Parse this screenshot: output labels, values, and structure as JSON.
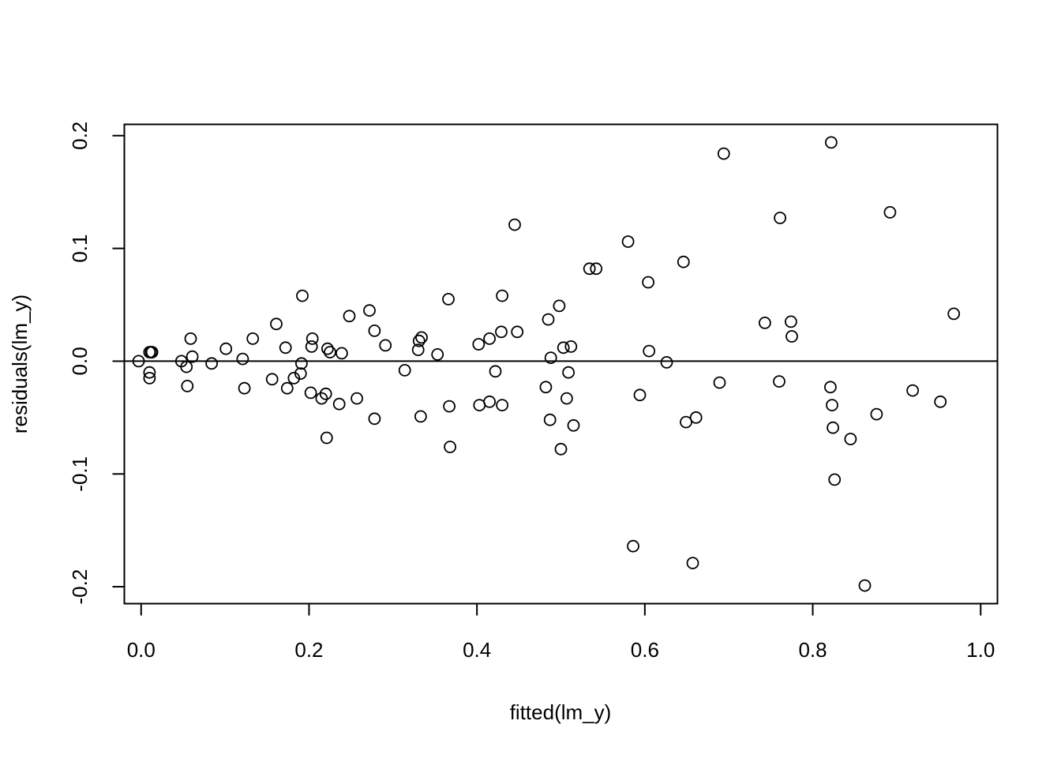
{
  "chart_data": {
    "type": "scatter",
    "title": "",
    "xlabel": "fitted(lm_y)",
    "ylabel": "residuals(lm_y)",
    "xlim": [
      -0.02,
      1.02
    ],
    "ylim": [
      -0.215,
      0.21
    ],
    "x_ticks": [
      0.0,
      0.2,
      0.4,
      0.6,
      0.8,
      1.0
    ],
    "x_tick_labels": [
      "0.0",
      "0.2",
      "0.4",
      "0.6",
      "0.8",
      "1.0"
    ],
    "y_ticks": [
      -0.2,
      -0.1,
      0.0,
      0.1,
      0.2
    ],
    "y_tick_labels": [
      "-0.2",
      "-0.1",
      "0.0",
      "0.1",
      "0.2"
    ],
    "reference_line_y": 0,
    "grid": false,
    "legend": "none",
    "point_style": "open-circle",
    "points": [
      [
        -0.003,
        0.0
      ],
      [
        0.01,
        0.008
      ],
      [
        0.012,
        0.008
      ],
      [
        0.013,
        0.008
      ],
      [
        0.01,
        -0.01
      ],
      [
        0.01,
        -0.015
      ],
      [
        0.048,
        0.0
      ],
      [
        0.054,
        -0.005
      ],
      [
        0.055,
        -0.022
      ],
      [
        0.059,
        0.02
      ],
      [
        0.061,
        0.004
      ],
      [
        0.084,
        -0.002
      ],
      [
        0.101,
        0.011
      ],
      [
        0.121,
        0.002
      ],
      [
        0.123,
        -0.024
      ],
      [
        0.133,
        0.02
      ],
      [
        0.156,
        -0.016
      ],
      [
        0.161,
        0.033
      ],
      [
        0.172,
        0.012
      ],
      [
        0.174,
        -0.024
      ],
      [
        0.182,
        -0.015
      ],
      [
        0.19,
        -0.011
      ],
      [
        0.191,
        -0.002
      ],
      [
        0.192,
        0.058
      ],
      [
        0.202,
        -0.028
      ],
      [
        0.203,
        0.013
      ],
      [
        0.204,
        0.02
      ],
      [
        0.215,
        -0.033
      ],
      [
        0.22,
        -0.029
      ],
      [
        0.222,
        0.011
      ],
      [
        0.221,
        -0.068
      ],
      [
        0.225,
        0.008
      ],
      [
        0.236,
        -0.038
      ],
      [
        0.239,
        0.007
      ],
      [
        0.248,
        0.04
      ],
      [
        0.257,
        -0.033
      ],
      [
        0.272,
        0.045
      ],
      [
        0.278,
        0.027
      ],
      [
        0.278,
        -0.051
      ],
      [
        0.291,
        0.014
      ],
      [
        0.314,
        -0.008
      ],
      [
        0.33,
        0.01
      ],
      [
        0.331,
        0.018
      ],
      [
        0.334,
        0.021
      ],
      [
        0.333,
        -0.049
      ],
      [
        0.353,
        0.006
      ],
      [
        0.366,
        0.055
      ],
      [
        0.367,
        -0.04
      ],
      [
        0.368,
        -0.076
      ],
      [
        0.402,
        0.015
      ],
      [
        0.403,
        -0.039
      ],
      [
        0.415,
        0.02
      ],
      [
        0.415,
        -0.036
      ],
      [
        0.422,
        -0.009
      ],
      [
        0.429,
        0.026
      ],
      [
        0.43,
        0.058
      ],
      [
        0.43,
        -0.039
      ],
      [
        0.445,
        0.121
      ],
      [
        0.448,
        0.026
      ],
      [
        0.482,
        -0.023
      ],
      [
        0.485,
        0.037
      ],
      [
        0.487,
        -0.052
      ],
      [
        0.488,
        0.003
      ],
      [
        0.498,
        0.049
      ],
      [
        0.5,
        -0.078
      ],
      [
        0.503,
        0.012
      ],
      [
        0.507,
        -0.033
      ],
      [
        0.509,
        -0.01
      ],
      [
        0.512,
        0.013
      ],
      [
        0.515,
        -0.057
      ],
      [
        0.534,
        0.082
      ],
      [
        0.542,
        0.082
      ],
      [
        0.58,
        0.106
      ],
      [
        0.586,
        -0.164
      ],
      [
        0.594,
        -0.03
      ],
      [
        0.604,
        0.07
      ],
      [
        0.605,
        0.009
      ],
      [
        0.626,
        -0.001
      ],
      [
        0.646,
        0.088
      ],
      [
        0.649,
        -0.054
      ],
      [
        0.657,
        -0.179
      ],
      [
        0.661,
        -0.05
      ],
      [
        0.689,
        -0.019
      ],
      [
        0.694,
        0.184
      ],
      [
        0.743,
        0.034
      ],
      [
        0.76,
        -0.018
      ],
      [
        0.761,
        0.127
      ],
      [
        0.774,
        0.035
      ],
      [
        0.775,
        0.022
      ],
      [
        0.821,
        -0.023
      ],
      [
        0.822,
        0.194
      ],
      [
        0.823,
        -0.039
      ],
      [
        0.824,
        -0.059
      ],
      [
        0.826,
        -0.105
      ],
      [
        0.845,
        -0.069
      ],
      [
        0.862,
        -0.199
      ],
      [
        0.876,
        -0.047
      ],
      [
        0.892,
        0.132
      ],
      [
        0.919,
        -0.026
      ],
      [
        0.952,
        -0.036
      ],
      [
        0.968,
        0.042
      ]
    ]
  }
}
